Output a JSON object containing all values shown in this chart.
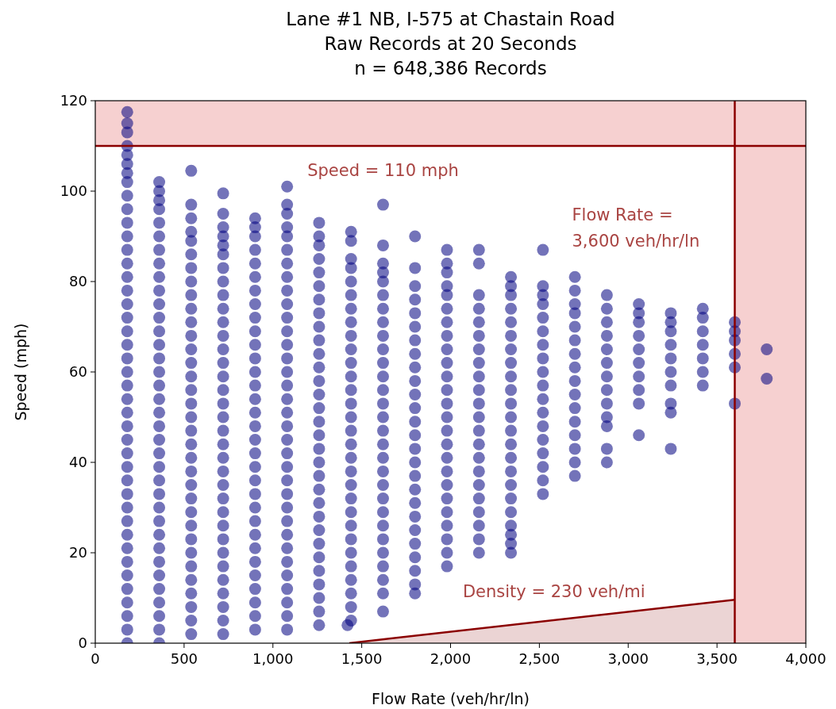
{
  "chart_data": {
    "type": "scatter",
    "title": "Lane #1 NB, I-575 at Chastain Road\nRaw Records at 20 Seconds\nn = 648,386 Records",
    "xlabel": "Flow Rate (veh/hr/ln)",
    "ylabel": "Speed (mph)",
    "xlim": [
      0,
      4000
    ],
    "ylim": [
      0,
      120
    ],
    "xticks": [
      0,
      500,
      {
        "value": 1000,
        "label": "1,000"
      },
      {
        "value": 1500,
        "label": "1,500"
      },
      {
        "value": 2000,
        "label": "2,000"
      },
      {
        "value": 2500,
        "label": "2,500"
      },
      {
        "value": 3000,
        "label": "3,000"
      },
      {
        "value": 3500,
        "label": "3,500"
      },
      {
        "value": 4000,
        "label": "4,000"
      }
    ],
    "yticks": [
      0,
      20,
      40,
      60,
      80,
      100,
      120
    ],
    "marker": "circle",
    "bands": [
      {
        "axis": "y",
        "from": 110,
        "to": 120,
        "color": "#f6d0d0"
      },
      {
        "axis": "x",
        "from": 3600,
        "to": 4000,
        "color": "#f6d0d0"
      }
    ],
    "ref_lines": [
      {
        "axis": "y",
        "value": 110,
        "label": "Speed = 110 mph",
        "color": "#8b0000"
      },
      {
        "axis": "x",
        "value": 3600,
        "label": "Flow Rate =\n3,600 veh/hr/ln",
        "color": "#8b0000"
      }
    ],
    "series": [
      {
        "type": "area",
        "name": "Density = 230 veh/mi",
        "color": "#8b0000",
        "marker": "none",
        "x": [
          1430,
          3600
        ],
        "values": [
          0,
          9.6
        ]
      },
      {
        "color": "#000080",
        "x": [
          180,
          180,
          180,
          180,
          180,
          180,
          180,
          180,
          180,
          180,
          180,
          180,
          180,
          180,
          180,
          180,
          180,
          180,
          180,
          180,
          180,
          180,
          180,
          180,
          180,
          180,
          180,
          180,
          180,
          180,
          180,
          180,
          180,
          180,
          180,
          180,
          180,
          180,
          180,
          180,
          180,
          180
        ],
        "values": [
          0,
          3,
          6,
          9,
          12,
          15,
          18,
          21,
          24,
          27,
          30,
          33,
          36,
          39,
          42,
          45,
          48,
          51,
          54,
          57,
          60,
          63,
          66,
          69,
          72,
          75,
          78,
          81,
          84,
          87,
          90,
          93,
          96,
          99,
          102,
          104,
          106,
          108,
          110,
          113,
          115,
          117.5
        ]
      },
      {
        "color": "#000080",
        "x": [
          360,
          360,
          360,
          360,
          360,
          360,
          360,
          360,
          360,
          360,
          360,
          360,
          360,
          360,
          360,
          360,
          360,
          360,
          360,
          360,
          360,
          360,
          360,
          360,
          360,
          360,
          360,
          360,
          360,
          360,
          360,
          360,
          360,
          360,
          360,
          360
        ],
        "values": [
          0,
          3,
          6,
          9,
          12,
          15,
          18,
          21,
          24,
          27,
          30,
          33,
          36,
          39,
          42,
          45,
          48,
          51,
          54,
          57,
          60,
          63,
          66,
          69,
          72,
          75,
          78,
          81,
          84,
          87,
          90,
          93,
          96,
          98,
          100,
          102
        ]
      },
      {
        "color": "#000080",
        "x": [
          540,
          540,
          540,
          540,
          540,
          540,
          540,
          540,
          540,
          540,
          540,
          540,
          540,
          540,
          540,
          540,
          540,
          540,
          540,
          540,
          540,
          540,
          540,
          540,
          540,
          540,
          540,
          540,
          540,
          540,
          540,
          540,
          540,
          540
        ],
        "values": [
          2,
          5,
          8,
          11,
          14,
          17,
          20,
          23,
          26,
          29,
          32,
          35,
          38,
          41,
          44,
          47,
          50,
          53,
          56,
          59,
          62,
          65,
          68,
          71,
          74,
          77,
          80,
          83,
          86,
          89,
          91,
          94,
          97,
          104.5
        ]
      },
      {
        "color": "#000080",
        "x": [
          720,
          720,
          720,
          720,
          720,
          720,
          720,
          720,
          720,
          720,
          720,
          720,
          720,
          720,
          720,
          720,
          720,
          720,
          720,
          720,
          720,
          720,
          720,
          720,
          720,
          720,
          720,
          720,
          720,
          720,
          720,
          720,
          720,
          720
        ],
        "values": [
          2,
          5,
          8,
          11,
          14,
          17,
          20,
          23,
          26,
          29,
          32,
          35,
          38,
          41,
          44,
          47,
          50,
          53,
          56,
          59,
          62,
          65,
          68,
          71,
          74,
          77,
          80,
          83,
          86,
          88,
          90,
          92,
          95,
          99.5
        ]
      },
      {
        "color": "#000080",
        "x": [
          900,
          900,
          900,
          900,
          900,
          900,
          900,
          900,
          900,
          900,
          900,
          900,
          900,
          900,
          900,
          900,
          900,
          900,
          900,
          900,
          900,
          900,
          900,
          900,
          900,
          900,
          900,
          900,
          900,
          900,
          900,
          900
        ],
        "values": [
          3,
          6,
          9,
          12,
          15,
          18,
          21,
          24,
          27,
          30,
          33,
          36,
          39,
          42,
          45,
          48,
          51,
          54,
          57,
          60,
          63,
          66,
          69,
          72,
          75,
          78,
          81,
          84,
          87,
          90,
          92,
          94
        ]
      },
      {
        "color": "#000080",
        "x": [
          1080,
          1080,
          1080,
          1080,
          1080,
          1080,
          1080,
          1080,
          1080,
          1080,
          1080,
          1080,
          1080,
          1080,
          1080,
          1080,
          1080,
          1080,
          1080,
          1080,
          1080,
          1080,
          1080,
          1080,
          1080,
          1080,
          1080,
          1080,
          1080,
          1080,
          1080,
          1080,
          1080,
          1080
        ],
        "values": [
          3,
          6,
          9,
          12,
          15,
          18,
          21,
          24,
          27,
          30,
          33,
          36,
          39,
          42,
          45,
          48,
          51,
          54,
          57,
          60,
          63,
          66,
          69,
          72,
          75,
          78,
          81,
          84,
          87,
          90,
          92,
          95,
          97,
          101
        ]
      },
      {
        "color": "#000080",
        "x": [
          1260,
          1260,
          1260,
          1260,
          1260,
          1260,
          1260,
          1260,
          1260,
          1260,
          1260,
          1260,
          1260,
          1260,
          1260,
          1260,
          1260,
          1260,
          1260,
          1260,
          1260,
          1260,
          1260,
          1260,
          1260,
          1260,
          1260,
          1260,
          1260,
          1260,
          1260
        ],
        "values": [
          4,
          7,
          10,
          13,
          16,
          19,
          22,
          25,
          28,
          31,
          34,
          37,
          40,
          43,
          46,
          49,
          52,
          55,
          58,
          61,
          64,
          67,
          70,
          73,
          76,
          79,
          82,
          85,
          88,
          90,
          93
        ]
      },
      {
        "color": "#000080",
        "x": [
          1440,
          1440,
          1440,
          1440,
          1440,
          1440,
          1440,
          1440,
          1440,
          1440,
          1440,
          1440,
          1440,
          1440,
          1440,
          1440,
          1440,
          1440,
          1440,
          1440,
          1440,
          1440,
          1440,
          1440,
          1440,
          1440,
          1440,
          1440,
          1440,
          1440,
          1420
        ],
        "values": [
          5,
          8,
          11,
          14,
          17,
          20,
          23,
          26,
          29,
          32,
          35,
          38,
          41,
          44,
          47,
          50,
          53,
          56,
          59,
          62,
          65,
          68,
          71,
          74,
          77,
          80,
          83,
          85,
          89,
          91,
          4
        ]
      },
      {
        "color": "#000080",
        "x": [
          1620,
          1620,
          1620,
          1620,
          1620,
          1620,
          1620,
          1620,
          1620,
          1620,
          1620,
          1620,
          1620,
          1620,
          1620,
          1620,
          1620,
          1620,
          1620,
          1620,
          1620,
          1620,
          1620,
          1620,
          1620,
          1620,
          1620,
          1620,
          1620
        ],
        "values": [
          11,
          14,
          17,
          20,
          23,
          26,
          29,
          32,
          35,
          38,
          41,
          44,
          47,
          50,
          53,
          56,
          59,
          62,
          65,
          68,
          71,
          74,
          77,
          80,
          7,
          82,
          84,
          88,
          97
        ]
      },
      {
        "color": "#000080",
        "x": [
          1800,
          1800,
          1800,
          1800,
          1800,
          1800,
          1800,
          1800,
          1800,
          1800,
          1800,
          1800,
          1800,
          1800,
          1800,
          1800,
          1800,
          1800,
          1800,
          1800,
          1800,
          1800,
          1800,
          1800,
          1800,
          1800
        ],
        "values": [
          13,
          16,
          19,
          22,
          25,
          28,
          31,
          34,
          37,
          40,
          43,
          46,
          49,
          52,
          55,
          58,
          61,
          64,
          67,
          70,
          73,
          76,
          79,
          11,
          83,
          90
        ]
      },
      {
        "color": "#000080",
        "x": [
          1980,
          1980,
          1980,
          1980,
          1980,
          1980,
          1980,
          1980,
          1980,
          1980,
          1980,
          1980,
          1980,
          1980,
          1980,
          1980,
          1980,
          1980,
          1980,
          1980,
          1980,
          1980,
          1980,
          1980,
          1980
        ],
        "values": [
          17,
          20,
          23,
          26,
          29,
          32,
          35,
          38,
          41,
          44,
          47,
          50,
          53,
          56,
          59,
          62,
          65,
          68,
          71,
          74,
          77,
          79,
          82,
          84,
          87
        ]
      },
      {
        "color": "#000080",
        "x": [
          2160,
          2160,
          2160,
          2160,
          2160,
          2160,
          2160,
          2160,
          2160,
          2160,
          2160,
          2160,
          2160,
          2160,
          2160,
          2160,
          2160,
          2160,
          2160,
          2160,
          2160,
          2160
        ],
        "values": [
          20,
          23,
          26,
          29,
          32,
          35,
          38,
          41,
          44,
          47,
          50,
          53,
          56,
          59,
          62,
          65,
          68,
          71,
          74,
          77,
          84,
          87
        ]
      },
      {
        "color": "#000080",
        "x": [
          2340,
          2340,
          2340,
          2340,
          2340,
          2340,
          2340,
          2340,
          2340,
          2340,
          2340,
          2340,
          2340,
          2340,
          2340,
          2340,
          2340,
          2340,
          2340,
          2340,
          2340,
          2340,
          2340
        ],
        "values": [
          26,
          29,
          32,
          35,
          38,
          41,
          44,
          47,
          50,
          53,
          56,
          59,
          62,
          65,
          68,
          71,
          74,
          77,
          20,
          22,
          24,
          79,
          81
        ]
      },
      {
        "color": "#000080",
        "x": [
          2520,
          2520,
          2520,
          2520,
          2520,
          2520,
          2520,
          2520,
          2520,
          2520,
          2520,
          2520,
          2520,
          2520,
          2520,
          2520,
          2520,
          2520
        ],
        "values": [
          33,
          36,
          39,
          42,
          45,
          48,
          51,
          54,
          57,
          60,
          63,
          66,
          69,
          72,
          75,
          77,
          79,
          87
        ]
      },
      {
        "color": "#000080",
        "x": [
          2700,
          2700,
          2700,
          2700,
          2700,
          2700,
          2700,
          2700,
          2700,
          2700,
          2700,
          2700,
          2700,
          2700,
          2700,
          2700
        ],
        "values": [
          40,
          43,
          46,
          49,
          52,
          55,
          58,
          61,
          64,
          67,
          70,
          73,
          37,
          75,
          78,
          81
        ]
      },
      {
        "color": "#000080",
        "x": [
          2880,
          2880,
          2880,
          2880,
          2880,
          2880,
          2880,
          2880,
          2880,
          2880,
          2880,
          2880,
          2880
        ],
        "values": [
          50,
          53,
          56,
          59,
          62,
          65,
          68,
          71,
          74,
          40,
          43,
          48,
          77
        ]
      },
      {
        "color": "#000080",
        "x": [
          3060,
          3060,
          3060,
          3060,
          3060,
          3060,
          3060,
          3060,
          3060,
          3060
        ],
        "values": [
          53,
          56,
          59,
          62,
          65,
          68,
          71,
          46,
          73,
          75
        ]
      },
      {
        "color": "#000080",
        "x": [
          3240,
          3240,
          3240,
          3240,
          3240,
          3240,
          3240,
          3240,
          3240,
          3240
        ],
        "values": [
          57,
          60,
          63,
          66,
          69,
          43,
          51,
          53,
          71,
          73
        ]
      },
      {
        "color": "#000080",
        "x": [
          3420,
          3420,
          3420,
          3420,
          3420,
          3420,
          3420
        ],
        "values": [
          57,
          60,
          63,
          66,
          69,
          72,
          74
        ]
      },
      {
        "color": "#000080",
        "x": [
          3600,
          3600,
          3600,
          3600,
          3600,
          3600
        ],
        "values": [
          61,
          64,
          67,
          53,
          69,
          71
        ]
      },
      {
        "color": "#000080",
        "x": [
          3780,
          3780
        ],
        "values": [
          58.5,
          65
        ]
      }
    ]
  }
}
